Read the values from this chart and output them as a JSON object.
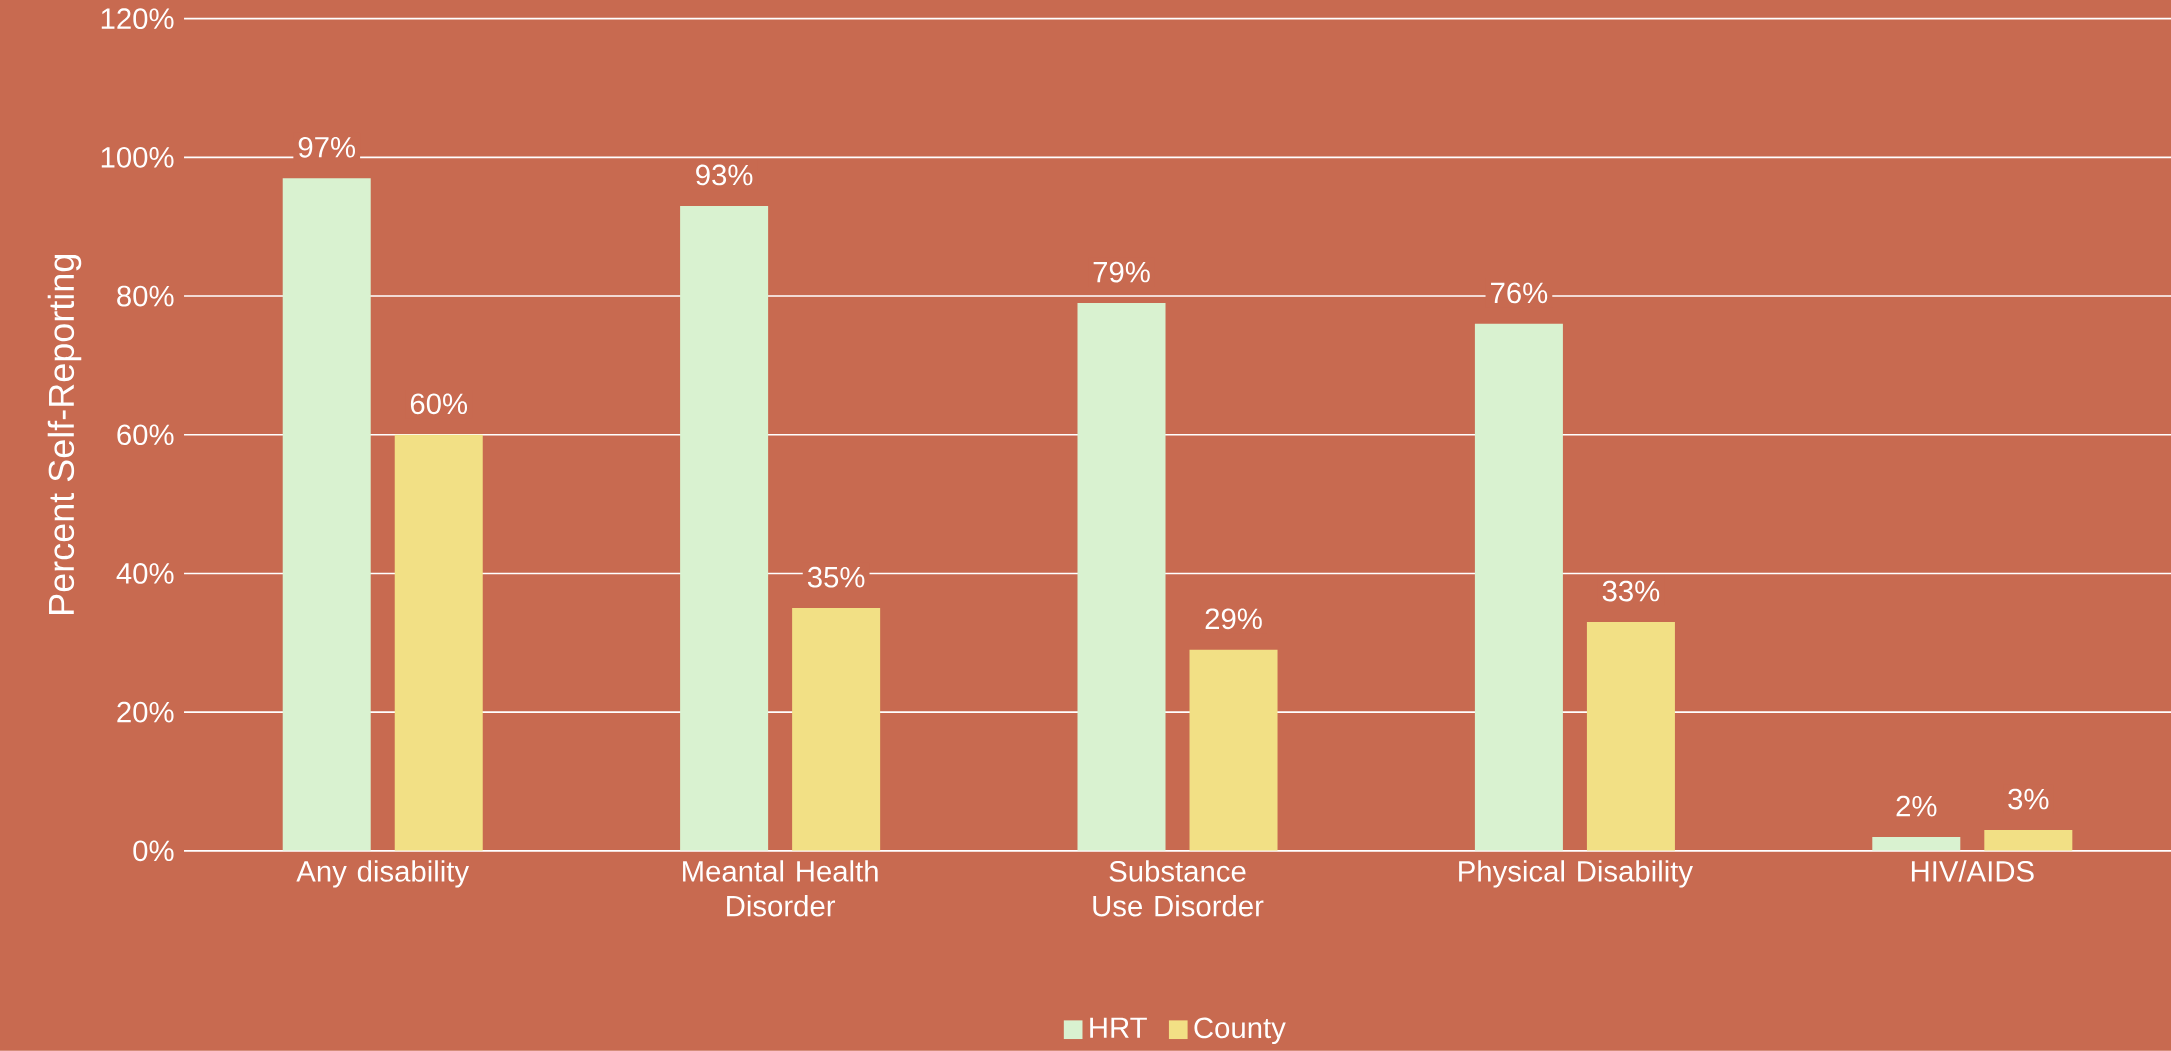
{
  "chart_data": {
    "type": "bar",
    "ylabel": "Percent Self-Reporting",
    "categories": [
      "Any disability",
      "Meantal Health Disorder",
      "Substance Use Disorder",
      "Physical Disability",
      "HIV/AIDS"
    ],
    "series": [
      {
        "name": "HRT",
        "color": "#d9f2d0",
        "values": [
          97,
          93,
          79,
          76,
          2
        ],
        "value_labels": [
          "97%",
          "93%",
          "79%",
          "76%",
          "2%"
        ]
      },
      {
        "name": "County",
        "color": "#f2e085",
        "values": [
          60,
          35,
          29,
          33,
          3
        ],
        "value_labels": [
          "60%",
          "35%",
          "29%",
          "33%",
          "3%"
        ]
      }
    ],
    "ylim": [
      0,
      120
    ],
    "yticks": [
      {
        "value": 0,
        "label": "0%"
      },
      {
        "value": 20,
        "label": "20%"
      },
      {
        "value": 40,
        "label": "40%"
      },
      {
        "value": 60,
        "label": "60%"
      },
      {
        "value": 80,
        "label": "80%"
      },
      {
        "value": 100,
        "label": "100%"
      },
      {
        "value": 120,
        "label": "120%"
      }
    ],
    "grid": "y",
    "legend": "bottom"
  }
}
